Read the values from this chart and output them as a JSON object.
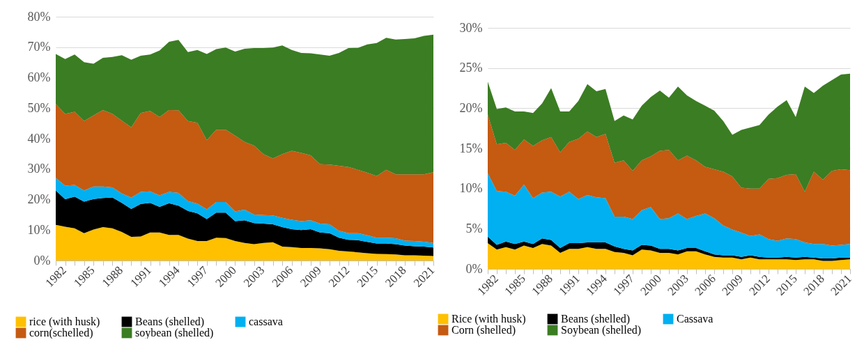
{
  "chart_data": [
    {
      "type": "area",
      "stacked": true,
      "grid": "y",
      "legend": "bottom",
      "categories": [
        "1982",
        null,
        null,
        "1985",
        null,
        null,
        "1988",
        null,
        null,
        "1991",
        null,
        null,
        "1994",
        null,
        null,
        "1997",
        null,
        null,
        "2000",
        null,
        null,
        "2003",
        null,
        null,
        "2006",
        null,
        null,
        "2009",
        null,
        null,
        "2012",
        null,
        null,
        "2015",
        null,
        null,
        "2018",
        null,
        null,
        "2021",
        null
      ],
      "ylim": [
        0,
        80
      ],
      "yticks": [
        {
          "value": 0,
          "label": "0%"
        },
        {
          "value": 10,
          "label": "10%"
        },
        {
          "value": 20,
          "label": "20%"
        },
        {
          "value": 30,
          "label": "30%"
        },
        {
          "value": 40,
          "label": "40%"
        },
        {
          "value": 50,
          "label": "50%"
        },
        {
          "value": 60,
          "label": "60%"
        },
        {
          "value": 70,
          "label": "70%"
        },
        {
          "value": 80,
          "label": "80%"
        }
      ],
      "series": [
        {
          "name": "rice (with husk)",
          "color": "#ffc000",
          "values": [
            11.7,
            11.1,
            10.6,
            9.0,
            10.2,
            11.0,
            10.6,
            9.4,
            7.8,
            7.9,
            9.2,
            9.2,
            8.4,
            8.4,
            7.2,
            6.4,
            6.4,
            7.5,
            7.4,
            6.4,
            5.8,
            5.4,
            5.8,
            6.0,
            4.6,
            4.4,
            4.1,
            4.1,
            4.0,
            3.7,
            3.2,
            3.0,
            2.7,
            2.4,
            2.2,
            2.1,
            2.0,
            1.7,
            1.7,
            1.6,
            1.5
          ]
        },
        {
          "name": "Beans (shelled)",
          "color": "#000000",
          "values": [
            11.3,
            9.0,
            10.4,
            10.3,
            10.0,
            9.5,
            10.1,
            9.5,
            9.1,
            10.7,
            9.7,
            8.4,
            10.4,
            9.6,
            9.1,
            9.1,
            7.2,
            8.2,
            8.3,
            6.5,
            7.4,
            6.9,
            6.3,
            5.9,
            6.4,
            5.9,
            5.9,
            6.2,
            5.2,
            5.3,
            4.3,
            3.8,
            4.0,
            3.7,
            3.4,
            3.5,
            3.4,
            3.2,
            3.0,
            3.0,
            2.8
          ]
        },
        {
          "name": "cassava",
          "color": "#00b0f0",
          "values": [
            4.1,
            4.5,
            3.8,
            3.7,
            4.1,
            3.8,
            3.3,
            3.1,
            3.8,
            3.9,
            3.8,
            3.8,
            3.7,
            4.2,
            3.2,
            3.2,
            3.2,
            3.5,
            3.5,
            3.2,
            3.5,
            2.8,
            2.8,
            2.9,
            3.0,
            3.1,
            2.9,
            2.9,
            2.9,
            2.9,
            2.3,
            2.2,
            2.3,
            2.2,
            1.9,
            1.9,
            1.9,
            1.6,
            1.7,
            1.6,
            1.5
          ]
        },
        {
          "name": "corn(schelled)",
          "color": "#c55a11",
          "values": [
            24.3,
            23.5,
            24.0,
            22.8,
            23.3,
            25.1,
            24.1,
            23.9,
            23.0,
            25.9,
            26.4,
            25.7,
            26.9,
            27.1,
            26.3,
            26.5,
            22.7,
            23.7,
            23.7,
            24.9,
            22.2,
            22.6,
            20.0,
            18.7,
            20.9,
            22.6,
            22.4,
            21.3,
            19.5,
            19.6,
            21.3,
            21.7,
            20.8,
            20.5,
            20.2,
            22.3,
            21.0,
            21.8,
            21.9,
            22.1,
            23.2
          ]
        },
        {
          "name": "soybean (shelled)",
          "color": "#3b7d23",
          "values": [
            16.4,
            18.0,
            18.8,
            19.3,
            17.0,
            17.1,
            18.7,
            21.5,
            22.2,
            18.8,
            18.5,
            21.8,
            22.4,
            23.1,
            22.6,
            23.9,
            28.3,
            26.5,
            27.0,
            27.6,
            30.6,
            32.0,
            34.8,
            36.4,
            35.7,
            33.1,
            32.8,
            33.5,
            36.0,
            35.7,
            37.0,
            39.0,
            40.0,
            42.1,
            43.7,
            43.3,
            44.2,
            44.4,
            44.6,
            45.4,
            45.1
          ]
        }
      ]
    },
    {
      "type": "area",
      "stacked": true,
      "grid": "y",
      "legend": "bottom",
      "categories": [
        "1982",
        null,
        null,
        "1985",
        null,
        null,
        "1988",
        null,
        null,
        "1991",
        null,
        null,
        "1994",
        null,
        null,
        "1997",
        null,
        null,
        "2000",
        null,
        null,
        "2003",
        null,
        null,
        "2006",
        null,
        null,
        "2009",
        null,
        null,
        "2012",
        null,
        null,
        "2015",
        null,
        null,
        "2018",
        null,
        null,
        "2021",
        null
      ],
      "ylim": [
        0,
        30
      ],
      "yticks": [
        {
          "value": 0,
          "label": "0%"
        },
        {
          "value": 5,
          "label": "5%"
        },
        {
          "value": 10,
          "label": "10%"
        },
        {
          "value": 15,
          "label": "15%"
        },
        {
          "value": 20,
          "label": "20%"
        },
        {
          "value": 25,
          "label": "25%"
        },
        {
          "value": 30,
          "label": "30%"
        }
      ],
      "series": [
        {
          "name": "Rice (with husk)",
          "color": "#ffc000",
          "values": [
            3.2,
            2.4,
            2.7,
            2.4,
            2.9,
            2.6,
            3.1,
            2.9,
            2.0,
            2.5,
            2.5,
            2.7,
            2.5,
            2.5,
            2.1,
            2.0,
            1.7,
            2.4,
            2.3,
            2.0,
            2.0,
            1.8,
            2.2,
            2.2,
            1.8,
            1.5,
            1.4,
            1.4,
            1.2,
            1.4,
            1.2,
            1.2,
            1.2,
            1.2,
            1.1,
            1.2,
            1.2,
            1.0,
            1.0,
            1.1,
            1.2
          ]
        },
        {
          "name": "Beans (shelled)",
          "color": "#000000",
          "values": [
            0.8,
            0.6,
            0.7,
            0.7,
            0.5,
            0.5,
            0.7,
            0.7,
            0.6,
            0.7,
            0.7,
            0.6,
            0.8,
            0.8,
            0.7,
            0.5,
            0.6,
            0.6,
            0.6,
            0.5,
            0.5,
            0.5,
            0.4,
            0.4,
            0.4,
            0.3,
            0.3,
            0.3,
            0.3,
            0.3,
            0.3,
            0.2,
            0.2,
            0.3,
            0.3,
            0.3,
            0.2,
            0.3,
            0.3,
            0.3,
            0.2
          ]
        },
        {
          "name": "Cassava",
          "color": "#00b0f0",
          "values": [
            7.9,
            6.7,
            6.2,
            6.0,
            7.1,
            5.7,
            5.7,
            6.0,
            6.4,
            6.4,
            5.5,
            5.9,
            5.6,
            5.5,
            3.7,
            4.0,
            3.9,
            4.3,
            4.8,
            3.7,
            3.8,
            4.6,
            3.6,
            4.0,
            4.7,
            4.5,
            3.7,
            3.2,
            3.0,
            2.4,
            2.8,
            2.3,
            2.1,
            2.3,
            2.3,
            1.8,
            1.7,
            1.8,
            1.6,
            1.6,
            1.7
          ]
        },
        {
          "name": "Corn (shelled)",
          "color": "#c55a11",
          "values": [
            7.3,
            5.8,
            6.1,
            5.7,
            5.6,
            6.5,
            6.5,
            6.8,
            5.5,
            6.2,
            7.5,
            7.9,
            7.5,
            8.0,
            6.7,
            7.0,
            6.0,
            6.2,
            6.3,
            8.5,
            8.5,
            6.6,
            7.9,
            6.9,
            5.8,
            6.1,
            6.7,
            6.6,
            5.6,
            5.9,
            5.7,
            7.5,
            7.8,
            7.9,
            8.1,
            6.3,
            9.0,
            8.0,
            9.3,
            9.4,
            9.2
          ]
        },
        {
          "name": "Soybean (shelled)",
          "color": "#3b7d23",
          "values": [
            4.1,
            4.4,
            4.4,
            4.8,
            3.5,
            4.1,
            4.6,
            6.1,
            5.1,
            3.8,
            4.7,
            5.9,
            5.7,
            5.6,
            5.2,
            5.6,
            6.4,
            6.8,
            7.4,
            7.5,
            6.5,
            9.2,
            7.5,
            7.4,
            7.6,
            7.3,
            6.3,
            5.2,
            7.2,
            7.6,
            7.9,
            8.0,
            8.9,
            9.3,
            7.1,
            13.1,
            9.8,
            11.7,
            11.3,
            11.8,
            12.0
          ]
        }
      ]
    }
  ]
}
